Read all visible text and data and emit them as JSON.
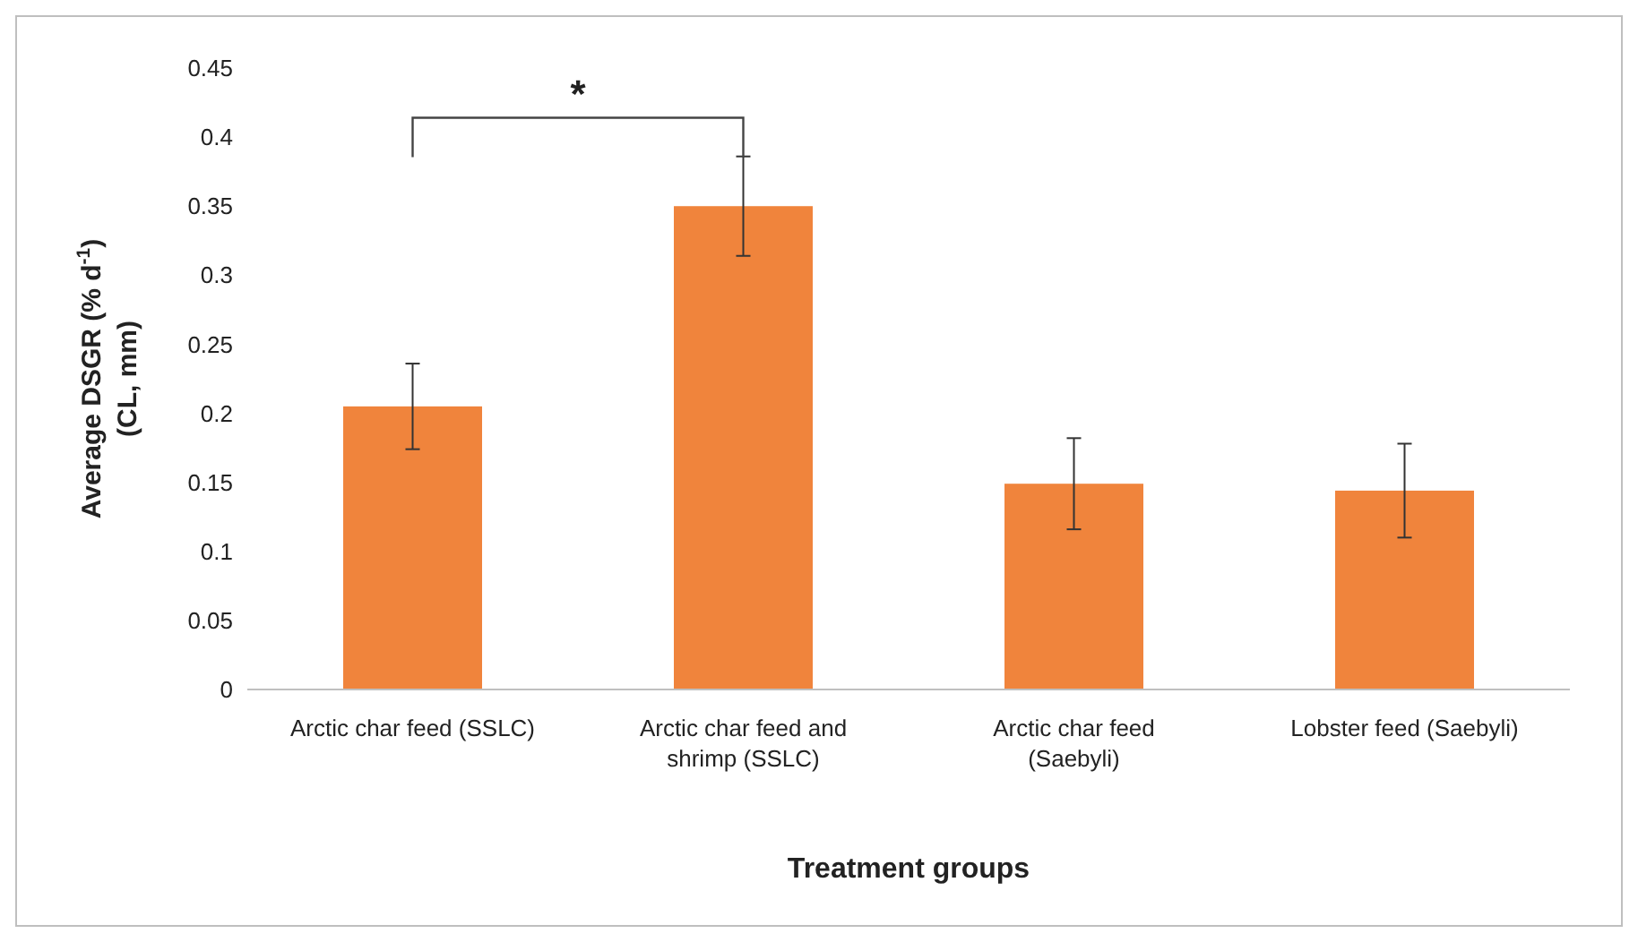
{
  "chart_data": {
    "type": "bar",
    "xlabel": "Treatment groups",
    "ylabel": "Average DSGR (% d$^{-1}$)\n(CL, mm)",
    "categories": [
      "Arctic char feed (SSLC)",
      "Arctic char feed and shrimp (SSLC)",
      "Arctic char feed (Saebyli)",
      "Lobster feed (Saebyli)"
    ],
    "values": [
      0.205,
      0.35,
      0.149,
      0.144
    ],
    "errors": [
      0.031,
      0.036,
      0.033,
      0.034
    ],
    "color": "#f0843c",
    "ylim": [
      0,
      0.45
    ],
    "yticks": [
      0,
      0.05,
      0.1,
      0.15,
      0.2,
      0.25,
      0.3,
      0.35,
      0.4,
      0.45
    ],
    "annotations": [
      "*"
    ],
    "grid": false
  }
}
